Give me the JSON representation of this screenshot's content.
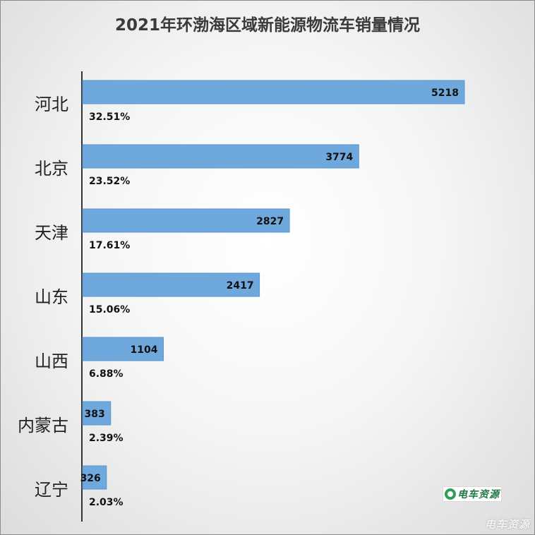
{
  "chart_data": {
    "type": "bar",
    "orientation": "horizontal",
    "title": "2021年环渤海区域新能源物流车销量情况",
    "categories": [
      "河北",
      "北京",
      "天津",
      "山东",
      "山西",
      "内蒙古",
      "辽宁"
    ],
    "values": [
      5218,
      3774,
      2827,
      2417,
      1104,
      383,
      326
    ],
    "percent_labels": [
      "32.51%",
      "23.52%",
      "17.61%",
      "15.06%",
      "6.88%",
      "2.39%",
      "2.03%"
    ],
    "xlim": [
      0,
      5218
    ],
    "grid": false,
    "legend": "none",
    "bar_color": "#6fa8dc"
  },
  "logo_text": "电车资源",
  "watermark_text": "电车资源"
}
